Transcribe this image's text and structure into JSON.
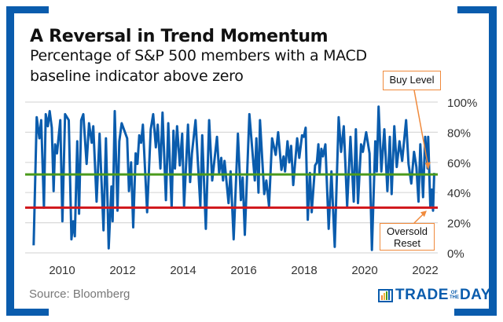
{
  "title": "A Reversal in Trend Momentum",
  "subtitle_lines": [
    "Percentage of S&P 500 members with a MACD",
    "baseline indicator above zero"
  ],
  "source": "Source: Bloomberg",
  "logo": {
    "text_left": "TRADE",
    "text_small_top": "OF",
    "text_small_bottom": "THE",
    "text_right": "DAY"
  },
  "colors": {
    "frame": "#0a5cad",
    "series": "#0a5cad",
    "buy_level": "#4a9a1c",
    "oversold": "#d0161b",
    "annotation": "#f08a3c",
    "grid": "#d9d9d9"
  },
  "chart_data": {
    "type": "line",
    "title": "A Reversal in Trend Momentum",
    "subtitle": "Percentage of S&P 500 members with a MACD baseline indicator above zero",
    "xlim": [
      2009.0,
      2022.35
    ],
    "ylim": [
      0,
      100
    ],
    "y_ticks": [
      "0%",
      "20%",
      "40%",
      "60%",
      "80%",
      "100%"
    ],
    "y_tick_values": [
      0,
      20,
      40,
      60,
      80,
      100
    ],
    "x_ticks": [
      "2010",
      "2012",
      "2014",
      "2016",
      "2018",
      "2020",
      "2022"
    ],
    "x_tick_values": [
      2010,
      2012,
      2014,
      2016,
      2018,
      2020,
      2022
    ],
    "y_axis_side": "right",
    "grid": "horizontal",
    "reference_lines": [
      {
        "label": "Buy Level",
        "value": 52
      },
      {
        "label": "Oversold Reset",
        "value": 30
      }
    ],
    "annotations": [
      {
        "text": "Buy Level",
        "points_to": [
          2022.1,
          55
        ]
      },
      {
        "text": "Oversold Reset",
        "line1": "Oversold",
        "line2": "Reset",
        "points_to": [
          2022.05,
          28
        ]
      }
    ],
    "x": [
      2009.06,
      2009.16,
      2009.25,
      2009.31,
      2009.4,
      2009.46,
      2009.53,
      2009.59,
      2009.66,
      2009.72,
      2009.77,
      2009.83,
      2009.94,
      2010.01,
      2010.1,
      2010.22,
      2010.31,
      2010.37,
      2010.42,
      2010.5,
      2010.56,
      2010.63,
      2010.7,
      2010.81,
      2010.89,
      2010.98,
      2011.03,
      2011.14,
      2011.24,
      2011.37,
      2011.45,
      2011.54,
      2011.63,
      2011.67,
      2011.74,
      2011.83,
      2011.89,
      2011.97,
      2012.06,
      2012.15,
      2012.21,
      2012.28,
      2012.35,
      2012.43,
      2012.49,
      2012.55,
      2012.61,
      2012.67,
      2012.81,
      2012.93,
      2013.01,
      2013.1,
      2013.16,
      2013.25,
      2013.32,
      2013.43,
      2013.51,
      2013.62,
      2013.68,
      2013.73,
      2013.8,
      2013.89,
      2013.97,
      2014.03,
      2014.16,
      2014.23,
      2014.29,
      2014.41,
      2014.57,
      2014.63,
      2014.75,
      2014.86,
      2014.96,
      2015.12,
      2015.19,
      2015.26,
      2015.32,
      2015.37,
      2015.5,
      2015.57,
      2015.67,
      2015.81,
      2015.91,
      2015.97,
      2016.04,
      2016.19,
      2016.37,
      2016.42,
      2016.49,
      2016.54,
      2016.68,
      2016.75,
      2016.84,
      2016.94,
      2017.06,
      2017.14,
      2017.25,
      2017.32,
      2017.37,
      2017.45,
      2017.51,
      2017.57,
      2017.64,
      2017.77,
      2017.84,
      2017.93,
      2017.99,
      2018.05,
      2018.12,
      2018.19,
      2018.25,
      2018.36,
      2018.42,
      2018.47,
      2018.51,
      2018.57,
      2018.62,
      2018.7,
      2018.81,
      2018.9,
      2019.01,
      2019.14,
      2019.22,
      2019.31,
      2019.42,
      2019.53,
      2019.64,
      2019.71,
      2019.78,
      2019.88,
      2019.94,
      2020.05,
      2020.16,
      2020.24,
      2020.35,
      2020.4,
      2020.46,
      2020.55,
      2020.65,
      2020.75,
      2020.83,
      2020.89,
      2020.98,
      2021.06,
      2021.15,
      2021.24,
      2021.37,
      2021.45,
      2021.54,
      2021.63,
      2021.71,
      2021.78,
      2021.84,
      2021.93,
      2022.0,
      2022.08,
      2022.1,
      2022.17,
      2022.22,
      2022.26,
      2022.3
    ],
    "values": [
      5,
      90,
      76,
      88,
      30,
      92,
      84,
      94,
      83,
      41,
      72,
      66,
      88,
      21,
      92,
      88,
      9,
      21,
      11,
      74,
      26,
      88,
      92,
      59,
      86,
      73,
      84,
      34,
      79,
      15,
      76,
      3,
      44,
      21,
      94,
      28,
      74,
      86,
      81,
      76,
      41,
      60,
      17,
      66,
      59,
      78,
      73,
      85,
      27,
      82,
      92,
      70,
      85,
      56,
      93,
      35,
      86,
      30,
      81,
      56,
      84,
      58,
      79,
      31,
      85,
      47,
      66,
      88,
      31,
      78,
      16,
      88,
      48,
      77,
      53,
      63,
      48,
      61,
      33,
      54,
      9,
      79,
      35,
      50,
      12,
      92,
      48,
      76,
      40,
      88,
      39,
      48,
      31,
      76,
      65,
      80,
      55,
      64,
      54,
      74,
      60,
      71,
      45,
      76,
      63,
      78,
      77,
      83,
      22,
      53,
      27,
      58,
      60,
      72,
      53,
      69,
      64,
      72,
      16,
      54,
      4,
      90,
      67,
      84,
      31,
      77,
      34,
      82,
      33,
      72,
      67,
      80,
      66,
      2,
      74,
      54,
      97,
      54,
      82,
      41,
      77,
      39,
      84,
      57,
      74,
      61,
      88,
      59,
      46,
      67,
      57,
      34,
      72,
      37,
      77,
      56,
      77,
      31,
      42,
      28,
      53
    ]
  }
}
